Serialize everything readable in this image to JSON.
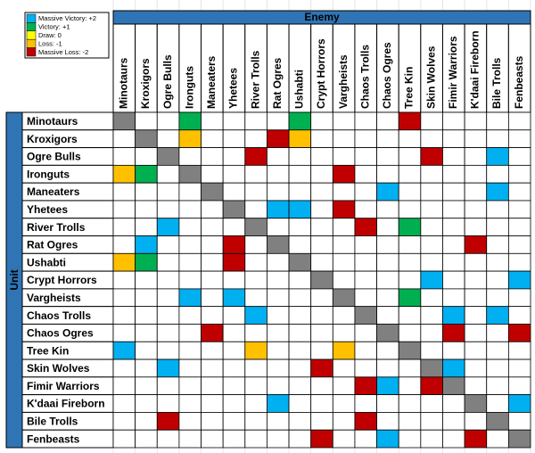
{
  "legend": {
    "items": [
      {
        "label": "Massive Victory: +2",
        "value": 2,
        "color": "#00b0f0"
      },
      {
        "label": "Victory: +1",
        "value": 1,
        "color": "#00b050"
      },
      {
        "label": "Draw: 0",
        "value": 0,
        "color": "#ffff00"
      },
      {
        "label": "Loss: -1",
        "value": -1,
        "color": "#ffc000"
      },
      {
        "label": "Massive Loss: -2",
        "value": -2,
        "color": "#c00000"
      }
    ]
  },
  "header": {
    "title": "Enemy"
  },
  "side": {
    "title": "Unit"
  },
  "columns": [
    "Minotaurs",
    "Kroxigors",
    "Ogre Bulls",
    "Ironguts",
    "Maneaters",
    "Yhetees",
    "River Trolls",
    "Rat Ogres",
    "Ushabti",
    "Crypt Horrors",
    "Vargheists",
    "Chaos Trolls",
    "Chaos Ogres",
    "Tree Kin",
    "Skin Wolves",
    "Fimir Warriors",
    "K'daai Fireborn",
    "Bile Trolls",
    "Fenbeasts"
  ],
  "rows": [
    {
      "label": "Minotaurs",
      "cells": [
        null,
        null,
        null,
        1,
        null,
        null,
        null,
        null,
        1,
        null,
        null,
        null,
        null,
        -2,
        null,
        null,
        null,
        null,
        null
      ]
    },
    {
      "label": "Kroxigors",
      "cells": [
        null,
        null,
        null,
        -1,
        null,
        null,
        null,
        -2,
        -1,
        null,
        null,
        null,
        null,
        null,
        null,
        null,
        null,
        null,
        null
      ]
    },
    {
      "label": "Ogre Bulls",
      "cells": [
        null,
        null,
        null,
        null,
        null,
        null,
        -2,
        null,
        null,
        null,
        null,
        null,
        null,
        null,
        -2,
        null,
        null,
        2,
        null
      ]
    },
    {
      "label": "Ironguts",
      "cells": [
        -1,
        1,
        null,
        null,
        null,
        null,
        null,
        null,
        null,
        null,
        -2,
        null,
        null,
        null,
        null,
        null,
        null,
        null,
        null
      ]
    },
    {
      "label": "Maneaters",
      "cells": [
        null,
        null,
        null,
        null,
        null,
        null,
        null,
        null,
        null,
        null,
        null,
        null,
        2,
        null,
        null,
        null,
        null,
        2,
        null
      ]
    },
    {
      "label": "Yhetees",
      "cells": [
        null,
        null,
        null,
        null,
        null,
        null,
        null,
        2,
        2,
        null,
        -2,
        null,
        null,
        null,
        null,
        null,
        null,
        null,
        null
      ]
    },
    {
      "label": "River Trolls",
      "cells": [
        null,
        null,
        2,
        null,
        null,
        null,
        null,
        null,
        null,
        null,
        null,
        -2,
        null,
        1,
        null,
        null,
        null,
        null,
        null
      ]
    },
    {
      "label": "Rat Ogres",
      "cells": [
        null,
        2,
        null,
        null,
        null,
        -2,
        null,
        null,
        null,
        null,
        null,
        null,
        null,
        null,
        null,
        null,
        -2,
        null,
        null
      ]
    },
    {
      "label": "Ushabti",
      "cells": [
        -1,
        1,
        null,
        null,
        null,
        -2,
        null,
        null,
        null,
        null,
        null,
        null,
        null,
        null,
        null,
        null,
        null,
        null,
        null
      ]
    },
    {
      "label": "Crypt Horrors",
      "cells": [
        null,
        null,
        null,
        null,
        null,
        null,
        null,
        null,
        null,
        null,
        null,
        null,
        null,
        null,
        2,
        null,
        null,
        null,
        2
      ]
    },
    {
      "label": "Vargheists",
      "cells": [
        null,
        null,
        null,
        2,
        null,
        2,
        null,
        null,
        null,
        null,
        null,
        null,
        null,
        1,
        null,
        null,
        null,
        null,
        null
      ]
    },
    {
      "label": "Chaos Trolls",
      "cells": [
        null,
        null,
        null,
        null,
        null,
        null,
        2,
        null,
        null,
        null,
        null,
        null,
        null,
        null,
        null,
        2,
        null,
        2,
        null
      ]
    },
    {
      "label": "Chaos Ogres",
      "cells": [
        null,
        null,
        null,
        null,
        -2,
        null,
        null,
        null,
        null,
        null,
        null,
        null,
        null,
        null,
        null,
        -2,
        null,
        null,
        -2
      ]
    },
    {
      "label": "Tree Kin",
      "cells": [
        2,
        null,
        null,
        null,
        null,
        null,
        -1,
        null,
        null,
        null,
        -1,
        null,
        null,
        null,
        null,
        null,
        null,
        null,
        null
      ]
    },
    {
      "label": "Skin Wolves",
      "cells": [
        null,
        null,
        2,
        null,
        null,
        null,
        null,
        null,
        null,
        -2,
        null,
        null,
        null,
        null,
        null,
        2,
        null,
        null,
        null
      ]
    },
    {
      "label": "Fimir Warriors",
      "cells": [
        null,
        null,
        null,
        null,
        null,
        null,
        null,
        null,
        null,
        null,
        null,
        -2,
        2,
        null,
        -2,
        null,
        null,
        null,
        null
      ]
    },
    {
      "label": "K'daai Fireborn",
      "cells": [
        null,
        null,
        null,
        null,
        null,
        null,
        null,
        2,
        null,
        null,
        null,
        null,
        null,
        null,
        null,
        null,
        null,
        null,
        2
      ]
    },
    {
      "label": "Bile Trolls",
      "cells": [
        null,
        null,
        -2,
        null,
        null,
        null,
        null,
        null,
        null,
        null,
        null,
        -2,
        null,
        null,
        null,
        null,
        null,
        null,
        null
      ]
    },
    {
      "label": "Fenbeasts",
      "cells": [
        null,
        null,
        null,
        null,
        null,
        null,
        null,
        null,
        null,
        -2,
        null,
        null,
        2,
        null,
        null,
        null,
        -2,
        null,
        null
      ]
    }
  ]
}
